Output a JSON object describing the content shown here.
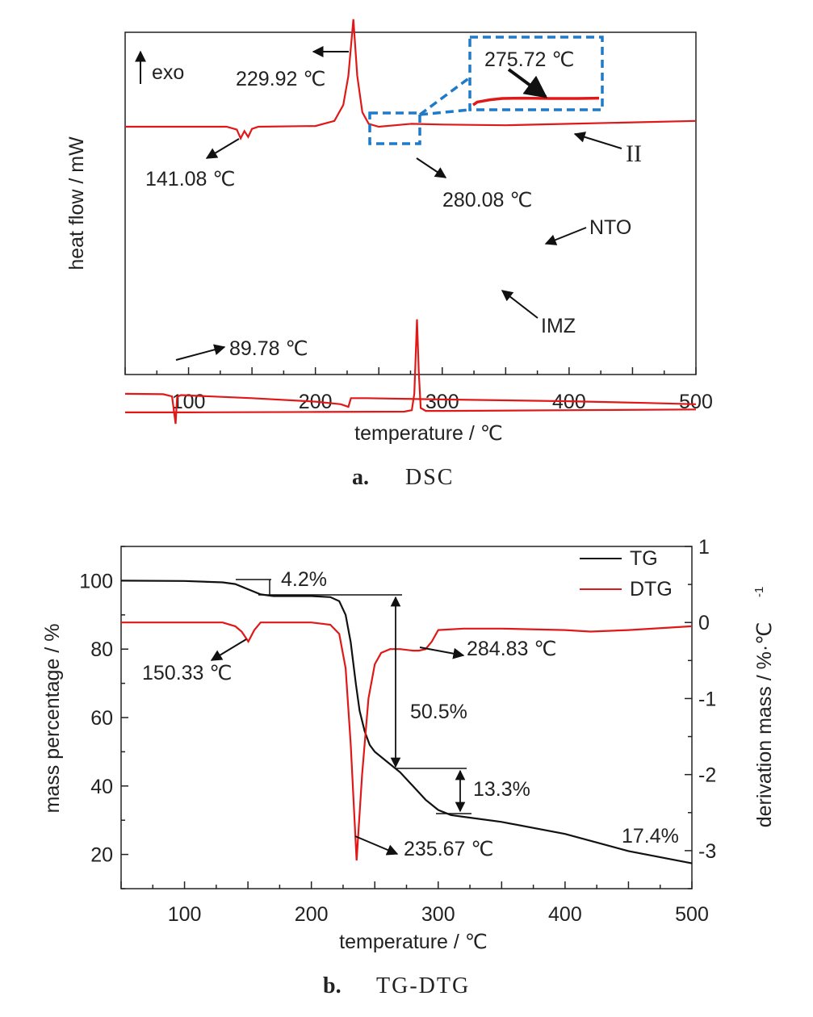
{
  "chart_data": [
    {
      "type": "line",
      "title": "",
      "caption_letter": "a.",
      "caption_text": "DSC",
      "xlabel": "temperature / ℃",
      "ylabel": "heat flow / mW",
      "xlim": [
        50,
        500
      ],
      "xticks": [
        "100",
        "200",
        "300",
        "400",
        "500"
      ],
      "grid": false,
      "series": [
        {
          "name": "II",
          "color": "#e01818",
          "x": [
            50,
            100,
            130,
            138,
            141.08,
            144,
            147,
            150,
            155,
            200,
            215,
            222,
            226,
            229.92,
            233,
            237,
            242,
            250,
            275.72,
            300,
            350,
            400,
            450,
            500
          ],
          "y": [
            0,
            0,
            0,
            -0.2,
            -0.8,
            -0.3,
            -0.7,
            -0.15,
            0,
            0.05,
            0.4,
            1.5,
            3.5,
            7.4,
            3.5,
            1.0,
            0.2,
            0.0,
            0.2,
            0.15,
            0.1,
            0.2,
            0.3,
            0.4
          ]
        },
        {
          "name": "NTO",
          "color": "#e01818",
          "x": [
            50,
            100,
            200,
            270,
            276,
            278,
            280.08,
            281.5,
            283,
            287,
            300,
            400,
            500
          ],
          "y": [
            -11.6,
            -11.6,
            -11.55,
            -11.5,
            -11.3,
            -9,
            1.2,
            -6,
            -11.0,
            -11.4,
            -11.4,
            -11.3,
            -11.2
          ]
        },
        {
          "name": "IMZ",
          "color": "#e01818",
          "x": [
            50,
            80,
            87,
            89.78,
            91,
            94,
            110,
            150,
            200,
            220,
            226,
            228,
            240,
            300,
            400,
            460,
            500
          ],
          "y": [
            -13.6,
            -13.7,
            -14.2,
            -20.5,
            -14.3,
            -13.9,
            -14.1,
            -14.6,
            -15.4,
            -16.0,
            -16.6,
            -14.6,
            -14.6,
            -14.9,
            -15.3,
            -15.7,
            -16.0
          ]
        }
      ],
      "inset": {
        "label": "275.72 ℃",
        "x": [
          255,
          258,
          262,
          267,
          275.72,
          290,
          310,
          330,
          345
        ],
        "y": [
          0.0,
          0.45,
          0.6,
          0.8,
          1.0,
          1.05,
          1.0,
          1.0,
          1.05
        ]
      },
      "annotations": {
        "exo": "exo",
        "peak_ii": "229.92 ℃",
        "endo_ii": "141.08 ℃",
        "peak_nto": "280.08 ℃",
        "endo_imz": "89.78 ℃",
        "label_ii": "II",
        "label_nto": "NTO",
        "label_imz": "IMZ"
      }
    },
    {
      "type": "line",
      "title": "",
      "caption_letter": "b.",
      "caption_text": "TG-DTG",
      "xlabel": "temperature / ℃",
      "ylabel": "mass percentage / %",
      "y2label": "derivation mass / %·℃",
      "y2label_sup": "-1",
      "xlim": [
        50,
        500
      ],
      "ylim": [
        10,
        110
      ],
      "y2lim": [
        -3.5,
        1
      ],
      "xticks": [
        "100",
        "200",
        "300",
        "400",
        "500"
      ],
      "yticks": [
        "20",
        "40",
        "60",
        "80",
        "100"
      ],
      "y2ticks": [
        "1",
        "0",
        "-1",
        "-2",
        "-3"
      ],
      "legend": "top-right",
      "grid": false,
      "series": [
        {
          "name": "TG",
          "color": "#111111",
          "axis": "left",
          "x": [
            50,
            100,
            130,
            140,
            150,
            160,
            170,
            200,
            215,
            222,
            227,
            231,
            235,
            238,
            242,
            246,
            250,
            260,
            270,
            280,
            290,
            300,
            310,
            320,
            350,
            400,
            450,
            500
          ],
          "y": [
            100,
            99.9,
            99.5,
            99,
            97.5,
            96,
            95.5,
            95.5,
            95.2,
            94,
            90,
            82,
            70,
            62,
            56,
            52,
            50,
            47,
            44,
            40,
            36,
            33,
            31.5,
            31,
            29.5,
            26,
            21,
            17.4
          ]
        },
        {
          "name": "DTG",
          "color": "#e01818",
          "axis": "right",
          "x": [
            50,
            100,
            130,
            140,
            145,
            150.33,
            155,
            160,
            170,
            200,
            215,
            222,
            227,
            231,
            235.67,
            240,
            245,
            250,
            255,
            262,
            270,
            280,
            284.83,
            290,
            295,
            300,
            320,
            350,
            400,
            420,
            450,
            500
          ],
          "y": [
            0.0,
            0.0,
            0.0,
            -0.05,
            -0.12,
            -0.25,
            -0.1,
            0.0,
            0.0,
            0.0,
            -0.03,
            -0.15,
            -0.6,
            -1.6,
            -3.13,
            -2.0,
            -1.0,
            -0.55,
            -0.4,
            -0.35,
            -0.35,
            -0.37,
            -0.37,
            -0.35,
            -0.25,
            -0.1,
            -0.08,
            -0.08,
            -0.1,
            -0.12,
            -0.1,
            -0.05
          ]
        }
      ],
      "annotations": {
        "loss1": "4.2%",
        "loss2": "50.5%",
        "loss3": "13.3%",
        "residue": "17.4%",
        "dtg_peak1": "150.33 ℃",
        "dtg_peak2": "235.67 ℃",
        "dtg_peak3": "284.83 ℃"
      }
    }
  ]
}
